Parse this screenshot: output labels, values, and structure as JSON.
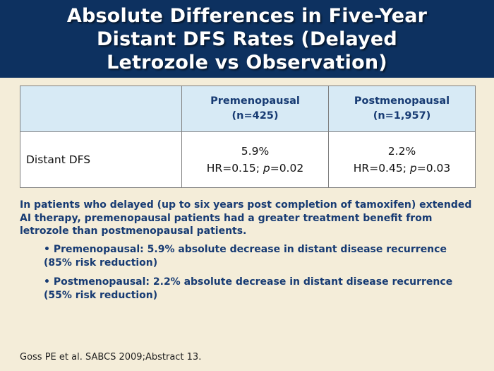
{
  "header": {
    "title_lines": [
      "Absolute Differences in Five-Year",
      "Distant DFS Rates (Delayed",
      "Letrozole vs Observation)"
    ],
    "colors": {
      "background": "#0d3160",
      "text": "#ffffff"
    }
  },
  "table": {
    "columns": [
      {
        "line1": "",
        "line2": ""
      },
      {
        "line1": "Premenopausal",
        "line2": "(n=425)"
      },
      {
        "line1": "Postmenopausal",
        "line2": "(n=1,957)"
      }
    ],
    "rows": [
      {
        "label": "Distant DFS",
        "cells": [
          {
            "value": "5.9%",
            "hr": "HR=0.15; ",
            "p_symbol": "p",
            "p_value": "=0.02"
          },
          {
            "value": "2.2%",
            "hr": "HR=0.45; ",
            "p_symbol": "p",
            "p_value": "=0.03"
          }
        ]
      }
    ],
    "colors": {
      "header_bg": "#d7eaf5",
      "header_text": "#173b73",
      "border": "#7f7f7f"
    }
  },
  "summary": "In patients who delayed (up to six years post completion of tamoxifen) extended AI therapy, premenopausal patients had a greater treatment benefit from letrozole than postmenopausal patients.",
  "bullets": [
    "• Premenopausal: 5.9% absolute decrease in distant disease recurrence (85% risk reduction)",
    "• Postmenopausal: 2.2% absolute decrease in distant disease recurrence (55% risk reduction)"
  ],
  "citation": "Goss PE et al. SABCS 2009;Abstract 13.",
  "colors": {
    "page_bg": "#f4edd9",
    "body_text": "#173b73"
  }
}
